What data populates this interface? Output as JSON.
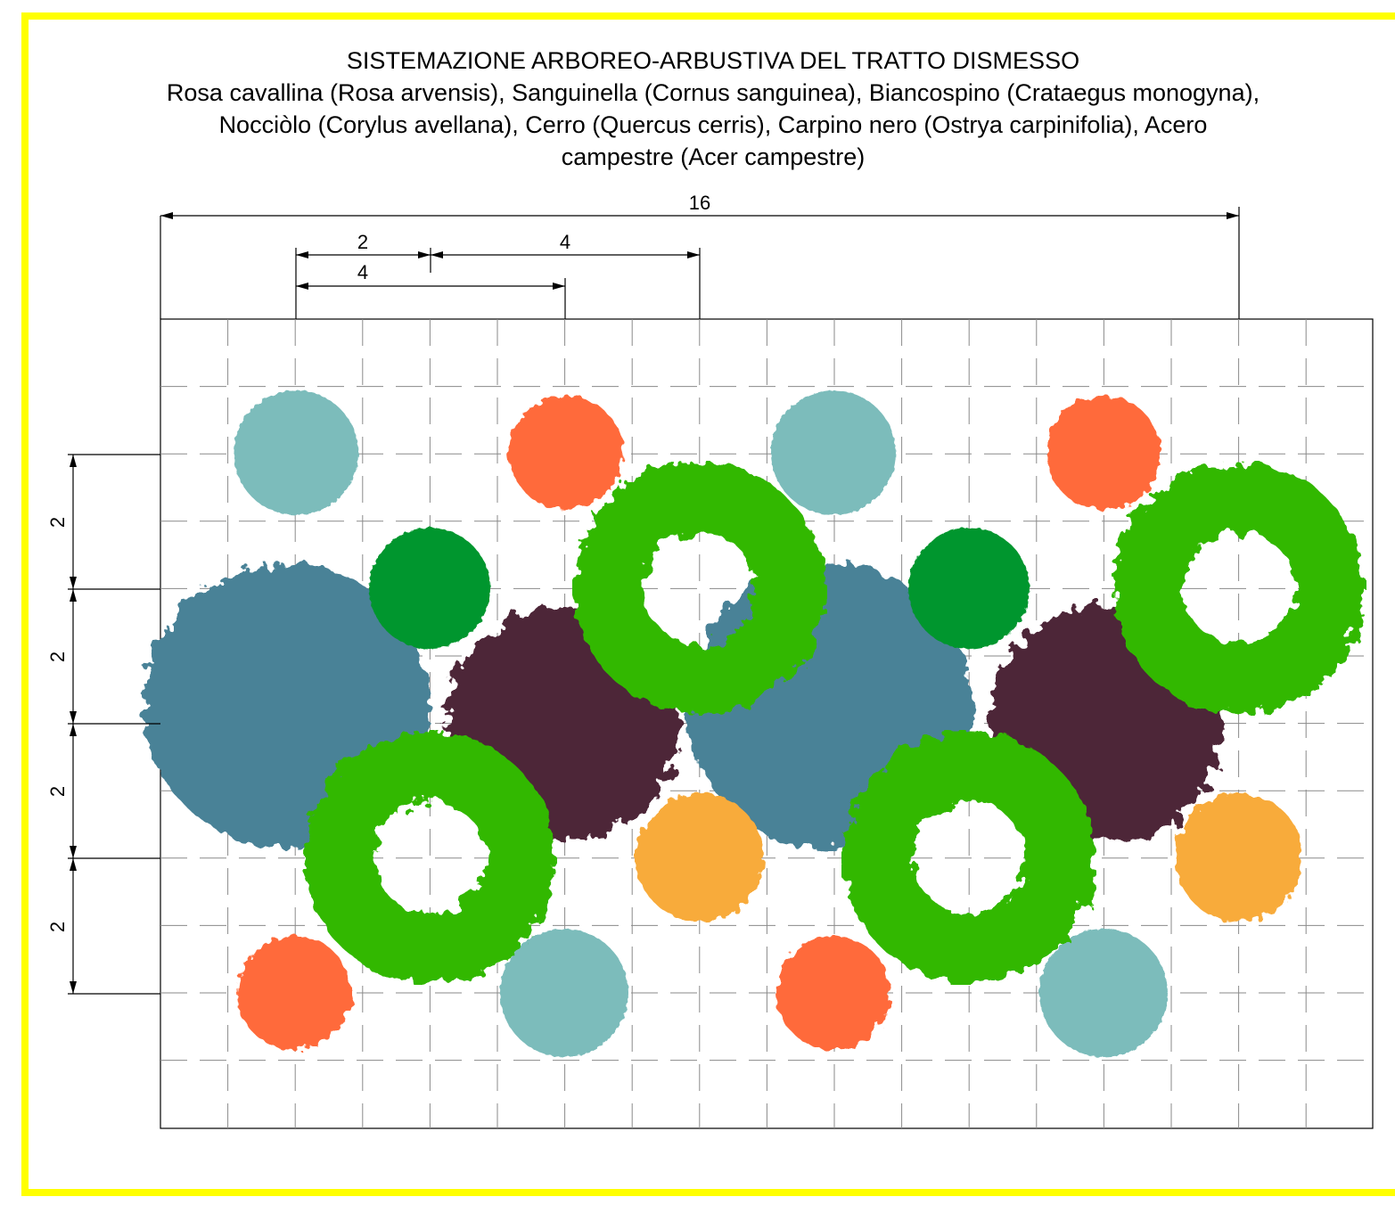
{
  "title": "SISTEMAZIONE ARBOREO-ARBUSTIVA DEL TRATTO DISMESSO",
  "subtitle_lines": [
    "Rosa cavallina (Rosa arvensis), Sanguinella (Cornus sanguinea), Biancospino (Crataegus monogyna),",
    "Nocciòlo (Corylus avellana), Cerro (Quercus cerris), Carpino nero (Ostrya carpinifolia), Acero",
    "campestre (Acer campestre)"
  ],
  "dimensions": {
    "total_width": "16",
    "spacing_a": "2",
    "spacing_b": "4",
    "spacing_c": "4",
    "row_1": "2",
    "row_2": "2",
    "row_3": "2",
    "row_4": "2"
  },
  "colors": {
    "frame": "#ffff00",
    "light_teal": "#7bbcbb",
    "orange_red": "#ff6b3b",
    "steel_blue": "#4a8297",
    "dark_green": "#00962f",
    "bright_green": "#33b800",
    "plum": "#4e2538",
    "amber": "#f8ab3b",
    "grid": "#8a8a8a"
  },
  "plant_icons": [
    "light-teal-shrub",
    "orange-red-shrub",
    "steel-blue-tree",
    "dark-green-shrub",
    "bright-green-ring-tree",
    "plum-tree",
    "amber-shrub"
  ]
}
